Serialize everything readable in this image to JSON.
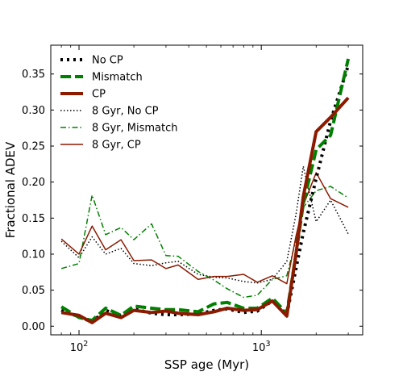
{
  "chart_data": {
    "type": "line",
    "xlabel": "SSP age (Myr)",
    "ylabel": "Fractional ADEV",
    "xscale": "log",
    "xlim": [
      70,
      3600
    ],
    "ylim": [
      -0.012,
      0.39
    ],
    "x_ticks": [
      {
        "value": 100,
        "base": "10",
        "exp": "2"
      },
      {
        "value": 1000,
        "base": "10",
        "exp": "3"
      }
    ],
    "y_ticks": [
      {
        "value": 0.0,
        "label": "0.00"
      },
      {
        "value": 0.05,
        "label": "0.05"
      },
      {
        "value": 0.1,
        "label": "0.10"
      },
      {
        "value": 0.15,
        "label": "0.15"
      },
      {
        "value": 0.2,
        "label": "0.20"
      },
      {
        "value": 0.25,
        "label": "0.25"
      },
      {
        "value": 0.3,
        "label": "0.30"
      },
      {
        "value": 0.35,
        "label": "0.35"
      }
    ],
    "x": [
      80,
      100,
      118,
      140,
      170,
      200,
      250,
      300,
      350,
      450,
      550,
      650,
      800,
      950,
      1150,
      1380,
      1550,
      1700,
      2000,
      2400,
      3000
    ],
    "series": [
      {
        "name": "8 Gyr, No CP",
        "color": "#000000",
        "style": "dotted-thin",
        "values": [
          0.118,
          0.095,
          0.124,
          0.1,
          0.108,
          0.087,
          0.084,
          0.088,
          0.09,
          0.072,
          0.068,
          0.067,
          0.062,
          0.06,
          0.065,
          0.09,
          0.155,
          0.222,
          0.145,
          0.175,
          0.128
        ]
      },
      {
        "name": "8 Gyr, Mismatch",
        "color": "#008000",
        "style": "dashdot-thin",
        "values": [
          0.08,
          0.087,
          0.182,
          0.127,
          0.137,
          0.12,
          0.142,
          0.098,
          0.097,
          0.076,
          0.064,
          0.052,
          0.04,
          0.043,
          0.065,
          0.07,
          0.12,
          0.165,
          0.188,
          0.194,
          0.178
        ]
      },
      {
        "name": "8 Gyr, CP",
        "color": "#8b1a00",
        "style": "solid-thin",
        "values": [
          0.121,
          0.1,
          0.139,
          0.106,
          0.12,
          0.091,
          0.092,
          0.08,
          0.085,
          0.065,
          0.069,
          0.069,
          0.072,
          0.061,
          0.07,
          0.059,
          0.125,
          0.168,
          0.213,
          0.177,
          0.165
        ]
      },
      {
        "name": "No CP",
        "color": "#000000",
        "style": "dotted-thick",
        "values": [
          0.022,
          0.013,
          0.006,
          0.022,
          0.014,
          0.024,
          0.018,
          0.016,
          0.016,
          0.017,
          0.022,
          0.024,
          0.019,
          0.021,
          0.035,
          0.016,
          0.08,
          0.13,
          0.205,
          0.285,
          0.362
        ]
      },
      {
        "name": "Mismatch",
        "color": "#008000",
        "style": "dashed-thick",
        "values": [
          0.027,
          0.012,
          0.008,
          0.025,
          0.015,
          0.028,
          0.025,
          0.023,
          0.023,
          0.02,
          0.031,
          0.033,
          0.025,
          0.025,
          0.039,
          0.018,
          0.1,
          0.17,
          0.245,
          0.265,
          0.371
        ]
      },
      {
        "name": "CP",
        "color": "#8b1a00",
        "style": "solid-thick",
        "values": [
          0.019,
          0.015,
          0.005,
          0.018,
          0.012,
          0.022,
          0.019,
          0.021,
          0.018,
          0.016,
          0.02,
          0.025,
          0.022,
          0.023,
          0.035,
          0.014,
          0.1,
          0.18,
          0.27,
          0.29,
          0.317
        ]
      }
    ],
    "legend": {
      "placement": "top-left",
      "order": [
        "No CP",
        "Mismatch",
        "CP",
        "8 Gyr, No CP",
        "8 Gyr, Mismatch",
        "8 Gyr, CP"
      ]
    },
    "grid": false
  }
}
